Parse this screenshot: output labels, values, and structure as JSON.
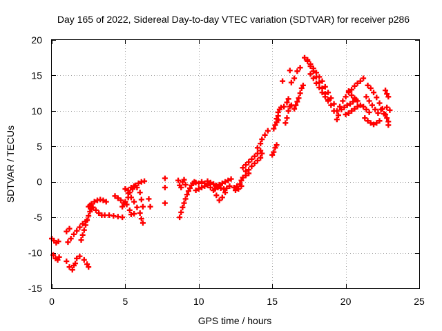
{
  "chart_data": {
    "type": "scatter",
    "title": "Day 165 of 2022, Sidereal Day-to-day VTEC variation (SDTVAR) for receiver p286",
    "xlabel": "GPS time / hours",
    "ylabel": "SDTVAR / TECUs",
    "xlim": [
      0,
      25
    ],
    "ylim": [
      -15,
      20
    ],
    "xticks": [
      0,
      5,
      10,
      15,
      20,
      25
    ],
    "yticks": [
      -15,
      -10,
      -5,
      0,
      5,
      10,
      15,
      20
    ],
    "xtick_labels": [
      "0",
      "5",
      "10",
      "15",
      "20",
      "25"
    ],
    "ytick_labels": [
      "-15",
      "-10",
      "-5",
      "0",
      "5",
      "10",
      "15",
      "20"
    ],
    "grid": true,
    "marker": "+",
    "series": [
      {
        "name": "SDTVAR",
        "color": "#ff0000",
        "points": [
          [
            0.0,
            -8.0
          ],
          [
            0.15,
            -8.3
          ],
          [
            0.3,
            -8.6
          ],
          [
            0.45,
            -8.4
          ],
          [
            0.1,
            -10.3
          ],
          [
            0.25,
            -10.8
          ],
          [
            0.4,
            -11.0
          ],
          [
            0.5,
            -10.6
          ],
          [
            1.0,
            -11.2
          ],
          [
            1.2,
            -12.0
          ],
          [
            1.4,
            -12.4
          ],
          [
            1.6,
            -11.5
          ],
          [
            1.7,
            -10.8
          ],
          [
            1.5,
            -11.8
          ],
          [
            2.2,
            -11.0
          ],
          [
            2.4,
            -11.6
          ],
          [
            2.5,
            -12.0
          ],
          [
            1.9,
            -10.5
          ],
          [
            1.1,
            -8.5
          ],
          [
            1.3,
            -8.0
          ],
          [
            1.5,
            -7.4
          ],
          [
            1.7,
            -6.9
          ],
          [
            1.9,
            -6.4
          ],
          [
            2.1,
            -5.9
          ],
          [
            2.3,
            -5.6
          ],
          [
            1.0,
            -7.0
          ],
          [
            1.2,
            -6.6
          ],
          [
            2.0,
            -8.2
          ],
          [
            2.1,
            -7.5
          ],
          [
            2.2,
            -6.8
          ],
          [
            2.3,
            -6.1
          ],
          [
            2.4,
            -5.4
          ],
          [
            2.5,
            -4.8
          ],
          [
            2.6,
            -4.2
          ],
          [
            2.7,
            -3.8
          ],
          [
            2.5,
            -3.5
          ],
          [
            2.7,
            -3.1
          ],
          [
            2.9,
            -2.8
          ],
          [
            3.1,
            -2.6
          ],
          [
            3.3,
            -2.5
          ],
          [
            3.5,
            -2.6
          ],
          [
            3.7,
            -2.8
          ],
          [
            2.6,
            -3.3
          ],
          [
            2.8,
            -3.6
          ],
          [
            3.0,
            -4.0
          ],
          [
            3.2,
            -4.4
          ],
          [
            3.4,
            -4.7
          ],
          [
            3.6,
            -4.7
          ],
          [
            3.9,
            -4.7
          ],
          [
            4.2,
            -4.8
          ],
          [
            4.5,
            -4.9
          ],
          [
            4.8,
            -5.0
          ],
          [
            4.3,
            -2.0
          ],
          [
            4.5,
            -2.3
          ],
          [
            4.7,
            -2.6
          ],
          [
            4.9,
            -3.0
          ],
          [
            5.1,
            -3.2
          ],
          [
            4.8,
            -3.5
          ],
          [
            5.0,
            -2.8
          ],
          [
            5.2,
            -2.2
          ],
          [
            5.3,
            -1.5
          ],
          [
            5.5,
            -1.0
          ],
          [
            5.7,
            -0.5
          ],
          [
            5.9,
            -0.2
          ],
          [
            6.1,
            0.0
          ],
          [
            6.3,
            0.1
          ],
          [
            5.2,
            -1.2
          ],
          [
            5.4,
            -0.8
          ],
          [
            5.6,
            -0.6
          ],
          [
            5.8,
            -0.8
          ],
          [
            6.0,
            -1.5
          ],
          [
            6.1,
            -2.5
          ],
          [
            6.2,
            -3.5
          ],
          [
            5.0,
            -1.0
          ],
          [
            5.2,
            -1.6
          ],
          [
            5.4,
            -2.2
          ],
          [
            5.6,
            -2.8
          ],
          [
            5.8,
            -3.6
          ],
          [
            6.0,
            -4.4
          ],
          [
            6.1,
            -5.2
          ],
          [
            6.2,
            -5.8
          ],
          [
            5.3,
            -4.0
          ],
          [
            5.4,
            -4.6
          ],
          [
            5.6,
            -4.5
          ],
          [
            6.6,
            -2.4
          ],
          [
            6.7,
            -3.5
          ],
          [
            7.7,
            0.5
          ],
          [
            7.7,
            -0.8
          ],
          [
            7.7,
            -3.0
          ],
          [
            8.7,
            -5.0
          ],
          [
            8.8,
            -4.3
          ],
          [
            8.9,
            -3.6
          ],
          [
            9.0,
            -3.0
          ],
          [
            9.1,
            -2.4
          ],
          [
            9.2,
            -1.8
          ],
          [
            9.3,
            -1.3
          ],
          [
            9.4,
            -0.9
          ],
          [
            9.5,
            -0.5
          ],
          [
            9.6,
            -0.2
          ],
          [
            9.7,
            0.0
          ],
          [
            9.8,
            -0.1
          ],
          [
            8.6,
            0.2
          ],
          [
            8.7,
            -0.5
          ],
          [
            8.8,
            -0.8
          ],
          [
            8.9,
            0.0
          ],
          [
            9.0,
            0.3
          ],
          [
            9.1,
            -0.4
          ],
          [
            9.8,
            -1.2
          ],
          [
            10.0,
            -1.0
          ],
          [
            10.2,
            -0.8
          ],
          [
            10.4,
            -0.6
          ],
          [
            10.6,
            -0.4
          ],
          [
            10.8,
            -0.3
          ],
          [
            10.0,
            -0.2
          ],
          [
            10.2,
            0.0
          ],
          [
            10.4,
            -0.2
          ],
          [
            10.6,
            -0.5
          ],
          [
            10.8,
            -0.8
          ],
          [
            11.0,
            -1.2
          ],
          [
            11.2,
            -1.9
          ],
          [
            11.4,
            -2.6
          ],
          [
            11.6,
            -2.2
          ],
          [
            11.8,
            -1.5
          ],
          [
            10.6,
            0.1
          ],
          [
            10.8,
            -0.1
          ],
          [
            11.0,
            -0.3
          ],
          [
            11.2,
            -0.5
          ],
          [
            11.4,
            -0.4
          ],
          [
            11.6,
            -0.2
          ],
          [
            11.8,
            0.0
          ],
          [
            12.0,
            0.2
          ],
          [
            12.2,
            0.4
          ],
          [
            11.1,
            -1.0
          ],
          [
            11.3,
            -0.8
          ],
          [
            11.5,
            -0.9
          ],
          [
            11.7,
            -1.0
          ],
          [
            11.9,
            -0.9
          ],
          [
            12.1,
            -0.6
          ],
          [
            12.4,
            -0.8
          ],
          [
            12.6,
            -0.6
          ],
          [
            12.8,
            -0.3
          ],
          [
            12.9,
            0.2
          ],
          [
            13.0,
            0.6
          ],
          [
            13.2,
            0.9
          ],
          [
            13.4,
            1.2
          ],
          [
            12.5,
            -1.2
          ],
          [
            12.7,
            -1.0
          ],
          [
            12.9,
            -0.6
          ],
          [
            13.0,
            2.0
          ],
          [
            13.2,
            2.4
          ],
          [
            13.4,
            2.8
          ],
          [
            13.6,
            3.2
          ],
          [
            13.8,
            3.6
          ],
          [
            14.0,
            4.0
          ],
          [
            14.2,
            4.4
          ],
          [
            13.2,
            1.5
          ],
          [
            13.4,
            1.7
          ],
          [
            13.6,
            2.2
          ],
          [
            13.8,
            2.6
          ],
          [
            14.0,
            3.0
          ],
          [
            14.2,
            3.4
          ],
          [
            14.3,
            4.0
          ],
          [
            14.0,
            4.8
          ],
          [
            14.2,
            5.4
          ],
          [
            14.3,
            6.0
          ],
          [
            14.5,
            6.6
          ],
          [
            14.7,
            7.2
          ],
          [
            15.0,
            3.8
          ],
          [
            15.1,
            4.2
          ],
          [
            15.2,
            4.8
          ],
          [
            15.3,
            5.2
          ],
          [
            15.1,
            7.5
          ],
          [
            15.2,
            8.0
          ],
          [
            15.3,
            8.4
          ],
          [
            15.4,
            8.7
          ],
          [
            15.3,
            8.9
          ],
          [
            15.4,
            9.3
          ],
          [
            15.4,
            9.8
          ],
          [
            15.5,
            10.2
          ],
          [
            15.6,
            10.5
          ],
          [
            15.9,
            8.3
          ],
          [
            16.0,
            9.0
          ],
          [
            16.1,
            10.0
          ],
          [
            16.2,
            10.6
          ],
          [
            16.3,
            10.8
          ],
          [
            15.8,
            10.6
          ],
          [
            16.0,
            11.2
          ],
          [
            16.1,
            11.7
          ],
          [
            16.3,
            14.0
          ],
          [
            16.5,
            14.6
          ],
          [
            16.7,
            15.6
          ],
          [
            16.9,
            16.1
          ],
          [
            16.5,
            10.3
          ],
          [
            16.6,
            10.8
          ],
          [
            16.7,
            11.3
          ],
          [
            16.8,
            11.8
          ],
          [
            16.9,
            12.5
          ],
          [
            17.0,
            13.2
          ],
          [
            17.1,
            13.6
          ],
          [
            17.2,
            17.5
          ],
          [
            17.4,
            17.2
          ],
          [
            17.6,
            16.6
          ],
          [
            17.8,
            16.0
          ],
          [
            18.0,
            15.4
          ],
          [
            18.2,
            14.8
          ],
          [
            18.4,
            14.2
          ],
          [
            18.6,
            13.4
          ],
          [
            18.8,
            12.6
          ],
          [
            19.0,
            11.8
          ],
          [
            19.2,
            11.0
          ],
          [
            19.4,
            10.0
          ],
          [
            19.5,
            9.4
          ],
          [
            17.4,
            17.0
          ],
          [
            17.6,
            16.3
          ],
          [
            17.8,
            15.6
          ],
          [
            18.0,
            14.8
          ],
          [
            18.2,
            14.0
          ],
          [
            18.4,
            13.2
          ],
          [
            18.6,
            12.4
          ],
          [
            18.8,
            11.6
          ],
          [
            19.0,
            10.8
          ],
          [
            19.2,
            10.0
          ],
          [
            17.6,
            15.2
          ],
          [
            17.8,
            14.6
          ],
          [
            18.0,
            13.9
          ],
          [
            18.2,
            13.3
          ],
          [
            18.4,
            12.6
          ],
          [
            18.6,
            12.0
          ],
          [
            18.8,
            11.4
          ],
          [
            15.7,
            14.2
          ],
          [
            16.2,
            15.7
          ],
          [
            19.4,
            8.8
          ],
          [
            19.6,
            10.6
          ],
          [
            19.8,
            11.4
          ],
          [
            20.0,
            12.0
          ],
          [
            20.2,
            12.6
          ],
          [
            20.4,
            13.0
          ],
          [
            20.6,
            13.5
          ],
          [
            20.8,
            13.9
          ],
          [
            21.0,
            14.2
          ],
          [
            21.2,
            14.6
          ],
          [
            19.7,
            10.2
          ],
          [
            19.9,
            10.5
          ],
          [
            20.1,
            10.8
          ],
          [
            20.3,
            11.0
          ],
          [
            20.5,
            11.3
          ],
          [
            20.7,
            11.6
          ],
          [
            20.0,
            9.5
          ],
          [
            20.2,
            9.7
          ],
          [
            20.4,
            10.0
          ],
          [
            20.6,
            10.3
          ],
          [
            20.8,
            10.6
          ],
          [
            21.0,
            10.8
          ],
          [
            21.2,
            10.6
          ],
          [
            21.4,
            10.2
          ],
          [
            21.6,
            9.8
          ],
          [
            20.2,
            12.8
          ],
          [
            20.4,
            12.2
          ],
          [
            20.6,
            11.8
          ],
          [
            20.8,
            11.4
          ],
          [
            21.5,
            13.6
          ],
          [
            21.7,
            13.2
          ],
          [
            21.9,
            12.6
          ],
          [
            22.1,
            11.9
          ],
          [
            22.3,
            11.1
          ],
          [
            22.5,
            10.3
          ],
          [
            22.7,
            9.5
          ],
          [
            21.4,
            12.0
          ],
          [
            21.6,
            11.4
          ],
          [
            21.8,
            10.8
          ],
          [
            22.0,
            10.2
          ],
          [
            22.2,
            9.7
          ],
          [
            21.3,
            9.0
          ],
          [
            21.5,
            8.6
          ],
          [
            21.7,
            8.3
          ],
          [
            21.9,
            8.1
          ],
          [
            22.1,
            8.3
          ],
          [
            22.3,
            8.6
          ],
          [
            22.4,
            10.2
          ],
          [
            22.6,
            9.6
          ],
          [
            22.8,
            9.0
          ],
          [
            22.9,
            8.5
          ],
          [
            22.7,
            12.9
          ],
          [
            22.8,
            12.4
          ],
          [
            22.9,
            12.0
          ],
          [
            22.8,
            10.5
          ],
          [
            23.0,
            10.1
          ],
          [
            22.9,
            8.0
          ]
        ]
      }
    ]
  }
}
